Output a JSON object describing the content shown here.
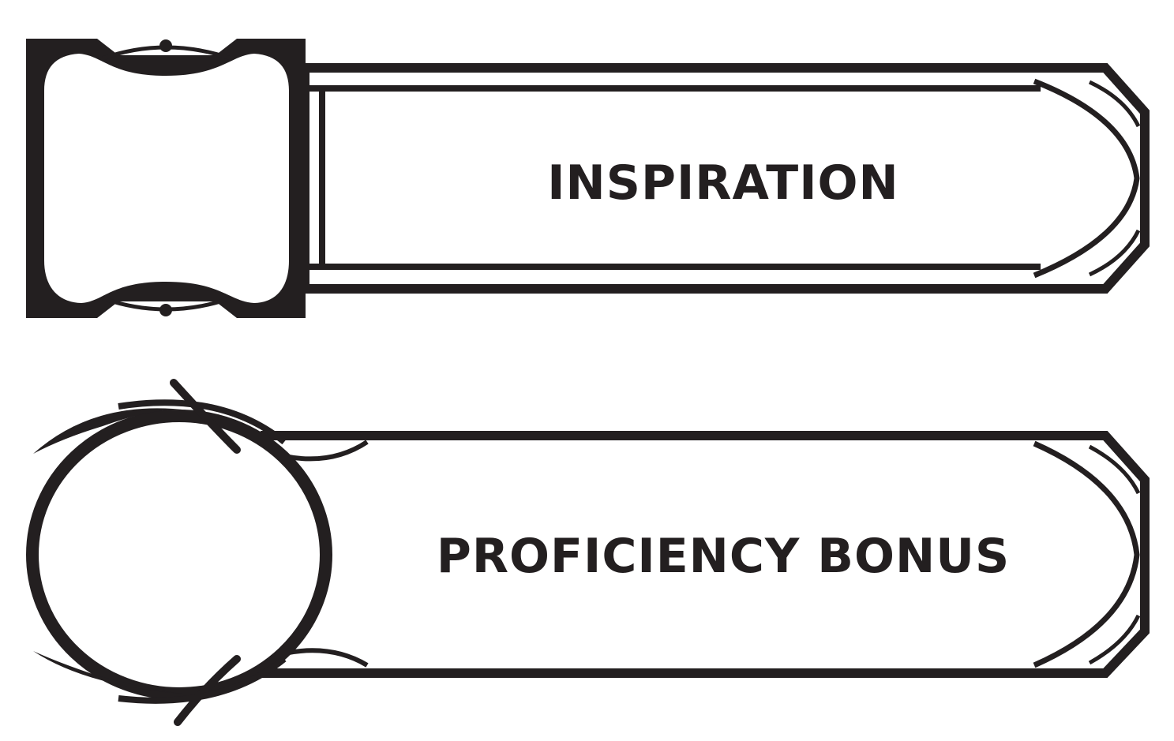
{
  "inspiration": {
    "label": "INSPIRATION"
  },
  "proficiency_bonus": {
    "label": "PROFICIENCY BONUS"
  },
  "colors": {
    "ink": "#231f20",
    "paper": "#ffffff"
  }
}
